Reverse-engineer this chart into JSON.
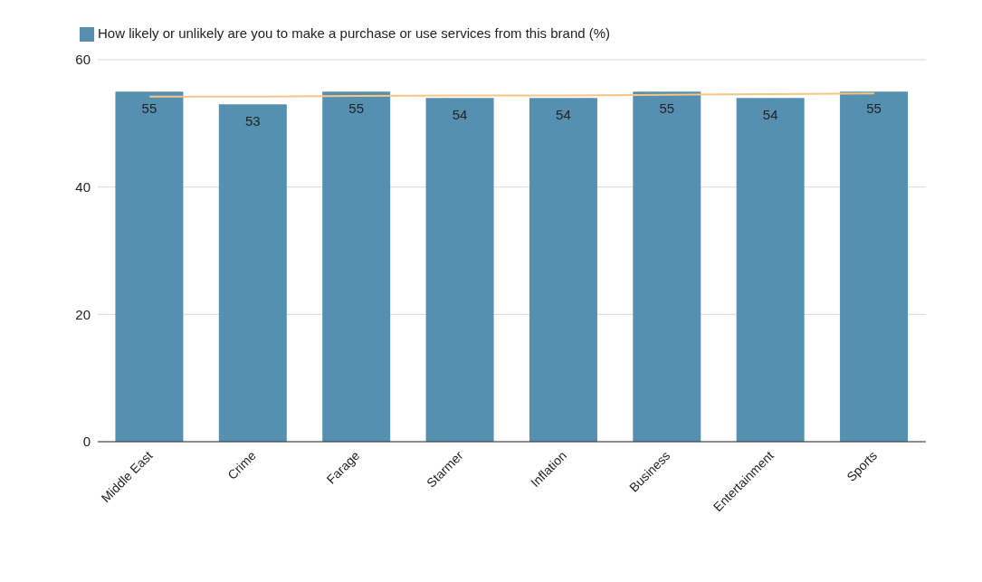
{
  "chart_data": {
    "type": "bar",
    "categories": [
      "Middle East",
      "Crime",
      "Farage",
      "Starmer",
      "Inflation",
      "Business",
      "Entertainment",
      "Sports"
    ],
    "series": [
      {
        "name": "How likely or unlikely are you to make a purchase or use services from this brand (%)",
        "color": "#5690b0",
        "values": [
          55,
          53,
          55,
          54,
          54,
          55,
          54,
          55
        ],
        "value_labels": [
          "55",
          "53",
          "55",
          "54",
          "54",
          "55",
          "54",
          "55"
        ]
      },
      {
        "type": "line",
        "color": "#f8c583",
        "values": [
          54.2,
          54.2,
          54.3,
          54.4,
          54.4,
          54.5,
          54.6,
          54.7
        ]
      }
    ],
    "ylim": [
      0,
      60
    ],
    "yticks": [
      0,
      20,
      40,
      60
    ],
    "grid": "y",
    "legend": "top left",
    "marker": "none"
  }
}
